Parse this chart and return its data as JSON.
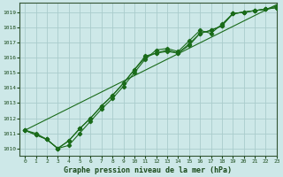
{
  "xlabel": "Graphe pression niveau de la mer (hPa)",
  "ylabel": "",
  "bg_color": "#cde8e8",
  "grid_color": "#aacccc",
  "line_color": "#1a6b1a",
  "xlim": [
    -0.5,
    23
  ],
  "ylim": [
    1009.5,
    1019.6
  ],
  "yticks": [
    1010,
    1011,
    1012,
    1013,
    1014,
    1015,
    1016,
    1017,
    1018,
    1019
  ],
  "xticks": [
    0,
    1,
    2,
    3,
    4,
    5,
    6,
    7,
    8,
    9,
    10,
    11,
    12,
    13,
    14,
    15,
    16,
    17,
    18,
    19,
    20,
    21,
    22,
    23
  ],
  "line1_x": [
    0,
    1,
    2,
    3,
    4,
    5,
    6,
    7,
    8,
    9,
    10,
    11,
    12,
    13,
    14,
    15,
    16,
    17,
    18,
    19,
    20,
    21,
    22,
    23
  ],
  "line1_y": [
    1011.2,
    1011.0,
    1010.6,
    1010.0,
    1010.2,
    1011.0,
    1011.8,
    1012.6,
    1013.3,
    1014.1,
    1015.0,
    1015.9,
    1016.5,
    1016.6,
    1016.4,
    1017.1,
    1017.8,
    1017.6,
    1018.2,
    1018.9,
    1019.0,
    1019.1,
    1019.2,
    1019.4
  ],
  "line2_x": [
    0,
    1,
    2,
    3,
    4,
    5,
    6,
    7,
    8,
    9,
    10,
    11,
    12,
    13,
    14,
    15,
    16,
    17,
    18,
    19,
    20,
    21,
    22,
    23
  ],
  "line2_y": [
    1011.2,
    1010.9,
    1010.6,
    1010.0,
    1010.5,
    1011.3,
    1012.0,
    1012.8,
    1013.5,
    1014.3,
    1015.2,
    1016.1,
    1016.3,
    1016.5,
    1016.3,
    1016.9,
    1017.6,
    1017.8,
    1018.1,
    1018.9,
    1019.0,
    1019.1,
    1019.2,
    1019.3
  ],
  "line3_x": [
    0,
    1,
    2,
    3,
    4,
    5,
    6,
    7,
    8,
    9,
    10,
    11,
    12,
    13,
    14,
    15,
    16,
    17,
    18,
    19,
    20,
    21,
    22,
    23
  ],
  "line3_y": [
    1011.2,
    1010.9,
    1010.6,
    1010.0,
    1010.5,
    1011.3,
    1012.0,
    1012.8,
    1013.5,
    1014.3,
    1015.2,
    1016.0,
    1016.3,
    1016.4,
    1016.3,
    1016.8,
    1017.6,
    1017.8,
    1018.1,
    1018.9,
    1019.0,
    1019.1,
    1019.2,
    1019.3
  ]
}
